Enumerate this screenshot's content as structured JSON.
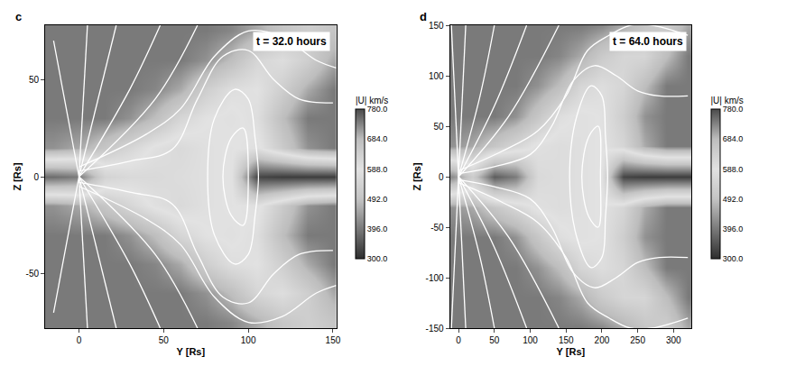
{
  "chart_data": [
    {
      "type": "heatmap",
      "panel_label": "c",
      "title": "t = 32.0 hours",
      "xlabel": "Y [Rs]",
      "ylabel": "Z [Rs]",
      "xlim": [
        -20,
        152
      ],
      "ylim": [
        -78,
        78
      ],
      "xticks": [
        0,
        50,
        100,
        150
      ],
      "yticks": [
        -50,
        0,
        50
      ],
      "grid": false,
      "x": [
        -15,
        0,
        15,
        30,
        45,
        60,
        75,
        90,
        105,
        120,
        135,
        150
      ],
      "y": [
        -75,
        -60,
        -45,
        -30,
        -15,
        0,
        15,
        30,
        45,
        60,
        75
      ],
      "cells": [
        [
          740,
          740,
          740,
          740,
          740,
          740,
          740,
          730,
          700,
          660,
          640,
          660
        ],
        [
          740,
          740,
          740,
          740,
          740,
          740,
          720,
          680,
          620,
          600,
          640,
          700
        ],
        [
          740,
          740,
          740,
          740,
          730,
          700,
          640,
          600,
          590,
          640,
          700,
          740
        ],
        [
          740,
          740,
          740,
          720,
          680,
          620,
          590,
          580,
          600,
          680,
          740,
          740
        ],
        [
          720,
          700,
          660,
          620,
          580,
          560,
          580,
          590,
          580,
          650,
          720,
          740
        ],
        [
          380,
          400,
          540,
          560,
          560,
          570,
          580,
          590,
          330,
          320,
          320,
          320
        ],
        [
          720,
          700,
          660,
          620,
          580,
          560,
          580,
          590,
          580,
          650,
          720,
          740
        ],
        [
          740,
          740,
          740,
          720,
          680,
          620,
          590,
          580,
          600,
          680,
          740,
          740
        ],
        [
          740,
          740,
          740,
          740,
          730,
          700,
          640,
          600,
          590,
          640,
          700,
          740
        ],
        [
          740,
          740,
          740,
          740,
          740,
          740,
          720,
          680,
          620,
          600,
          640,
          700
        ],
        [
          740,
          740,
          740,
          740,
          740,
          740,
          740,
          730,
          700,
          660,
          640,
          660
        ]
      ],
      "colorbar": {
        "title": "|U| km/s",
        "range": [
          300,
          780
        ],
        "ticks": [
          {
            "value": 780,
            "label": "780.0"
          },
          {
            "value": 684,
            "label": "684.0"
          },
          {
            "value": 588,
            "label": "588.0"
          },
          {
            "value": 492,
            "label": "492.0"
          },
          {
            "value": 396,
            "label": "396.0"
          },
          {
            "value": 300,
            "label": "300.0"
          }
        ]
      },
      "streamlines": [
        {
          "x": [
            0,
            -15
          ],
          "y": [
            0,
            70
          ]
        },
        {
          "x": [
            0,
            5
          ],
          "y": [
            0,
            78
          ]
        },
        {
          "x": [
            0,
            22
          ],
          "y": [
            0,
            78
          ]
        },
        {
          "x": [
            0,
            30,
            48
          ],
          "y": [
            0,
            45,
            78
          ]
        },
        {
          "x": [
            0,
            45,
            70
          ],
          "y": [
            0,
            40,
            78
          ]
        },
        {
          "x": [
            0,
            -15
          ],
          "y": [
            0,
            -70
          ]
        },
        {
          "x": [
            0,
            5
          ],
          "y": [
            0,
            -78
          ]
        },
        {
          "x": [
            0,
            22
          ],
          "y": [
            0,
            -78
          ]
        },
        {
          "x": [
            0,
            30,
            48
          ],
          "y": [
            0,
            -45,
            -78
          ]
        },
        {
          "x": [
            0,
            45,
            70
          ],
          "y": [
            0,
            -40,
            -78
          ]
        },
        {
          "x": [
            0,
            30,
            55,
            70,
            85,
            100,
            115,
            130,
            150
          ],
          "y": [
            3,
            8,
            14,
            40,
            62,
            65,
            50,
            40,
            38
          ]
        },
        {
          "x": [
            0,
            40,
            60,
            80,
            100,
            120,
            140,
            152
          ],
          "y": [
            5,
            22,
            35,
            62,
            75,
            72,
            60,
            56
          ]
        },
        {
          "x": [
            0,
            30,
            55,
            70,
            85,
            100,
            115,
            130,
            150
          ],
          "y": [
            -3,
            -8,
            -14,
            -40,
            -62,
            -65,
            -50,
            -40,
            -38
          ]
        },
        {
          "x": [
            0,
            40,
            60,
            80,
            100,
            120,
            140,
            152
          ],
          "y": [
            -5,
            -22,
            -35,
            -62,
            -75,
            -72,
            -60,
            -56
          ]
        },
        {
          "x": [
            100,
            92,
            80,
            76,
            80,
            92,
            100,
            104,
            106,
            104,
            100
          ],
          "y": [
            40,
            45,
            30,
            0,
            -30,
            -45,
            -40,
            -20,
            0,
            20,
            40
          ]
        },
        {
          "x": [
            97,
            90,
            85,
            90,
            97,
            100,
            97
          ],
          "y": [
            25,
            20,
            0,
            -20,
            -25,
            0,
            25
          ]
        }
      ]
    },
    {
      "type": "heatmap",
      "panel_label": "d",
      "title": "t = 64.0 hours",
      "xlabel": "Y [Rs]",
      "ylabel": "Z [Rs]",
      "xlim": [
        -12,
        325
      ],
      "ylim": [
        -150,
        150
      ],
      "xticks": [
        0,
        50,
        100,
        150,
        200,
        250,
        300
      ],
      "yticks": [
        -150,
        -100,
        -50,
        0,
        50,
        100,
        150
      ],
      "grid": false,
      "x": [
        -10,
        20,
        50,
        80,
        110,
        140,
        170,
        200,
        230,
        260,
        290,
        320
      ],
      "y": [
        -150,
        -120,
        -90,
        -60,
        -30,
        0,
        30,
        60,
        90,
        120,
        150
      ],
      "cells": [
        [
          740,
          740,
          740,
          740,
          740,
          740,
          740,
          730,
          700,
          660,
          640,
          700
        ],
        [
          740,
          740,
          740,
          740,
          740,
          730,
          700,
          650,
          620,
          620,
          680,
          740
        ],
        [
          740,
          740,
          740,
          740,
          720,
          680,
          620,
          600,
          620,
          680,
          740,
          740
        ],
        [
          740,
          740,
          740,
          720,
          660,
          600,
          580,
          590,
          640,
          720,
          740,
          740
        ],
        [
          720,
          700,
          660,
          620,
          580,
          570,
          580,
          590,
          620,
          700,
          740,
          740
        ],
        [
          420,
          520,
          360,
          400,
          560,
          570,
          580,
          590,
          330,
          320,
          320,
          320
        ],
        [
          720,
          700,
          660,
          620,
          580,
          570,
          580,
          590,
          620,
          700,
          740,
          740
        ],
        [
          740,
          740,
          740,
          720,
          660,
          600,
          580,
          590,
          640,
          720,
          740,
          740
        ],
        [
          740,
          740,
          740,
          740,
          720,
          680,
          620,
          600,
          620,
          680,
          740,
          740
        ],
        [
          740,
          740,
          740,
          740,
          740,
          730,
          700,
          650,
          620,
          620,
          680,
          740
        ],
        [
          740,
          740,
          740,
          740,
          740,
          740,
          740,
          730,
          700,
          660,
          640,
          700
        ]
      ],
      "colorbar": {
        "title": "|U| km/s",
        "range": [
          300,
          780
        ],
        "ticks": [
          {
            "value": 780,
            "label": "780.0"
          },
          {
            "value": 684,
            "label": "684.0"
          },
          {
            "value": 588,
            "label": "588.0"
          },
          {
            "value": 492,
            "label": "492.0"
          },
          {
            "value": 396,
            "label": "396.0"
          },
          {
            "value": 300,
            "label": "300.0"
          }
        ]
      },
      "streamlines": [
        {
          "x": [
            0,
            -10
          ],
          "y": [
            0,
            150
          ]
        },
        {
          "x": [
            0,
            10
          ],
          "y": [
            0,
            150
          ]
        },
        {
          "x": [
            0,
            30,
            50
          ],
          "y": [
            0,
            80,
            150
          ]
        },
        {
          "x": [
            0,
            50,
            95
          ],
          "y": [
            0,
            70,
            150
          ]
        },
        {
          "x": [
            0,
            70,
            140
          ],
          "y": [
            0,
            60,
            150
          ]
        },
        {
          "x": [
            0,
            -10
          ],
          "y": [
            0,
            -150
          ]
        },
        {
          "x": [
            0,
            10
          ],
          "y": [
            0,
            -150
          ]
        },
        {
          "x": [
            0,
            30,
            50
          ],
          "y": [
            0,
            -80,
            -150
          ]
        },
        {
          "x": [
            0,
            50,
            95
          ],
          "y": [
            0,
            -70,
            -150
          ]
        },
        {
          "x": [
            0,
            70,
            140
          ],
          "y": [
            0,
            -60,
            -150
          ]
        },
        {
          "x": [
            0,
            50,
            100,
            130,
            160,
            190,
            220,
            250,
            280,
            320
          ],
          "y": [
            3,
            10,
            22,
            50,
            95,
            110,
            100,
            85,
            80,
            80
          ]
        },
        {
          "x": [
            0,
            60,
            110,
            150,
            180,
            210,
            240,
            270,
            320
          ],
          "y": [
            6,
            25,
            45,
            80,
            125,
            140,
            150,
            150,
            140
          ]
        },
        {
          "x": [
            0,
            50,
            100,
            130,
            160,
            190,
            220,
            250,
            280,
            320
          ],
          "y": [
            -3,
            -10,
            -22,
            -50,
            -95,
            -110,
            -100,
            -85,
            -80,
            -80
          ]
        },
        {
          "x": [
            0,
            60,
            110,
            150,
            180,
            210,
            240,
            270,
            320
          ],
          "y": [
            -6,
            -25,
            -45,
            -80,
            -125,
            -140,
            -150,
            -150,
            -140
          ]
        },
        {
          "x": [
            200,
            185,
            165,
            155,
            165,
            185,
            200,
            205,
            208,
            205,
            200
          ],
          "y": [
            80,
            90,
            60,
            0,
            -60,
            -90,
            -80,
            -40,
            0,
            40,
            80
          ]
        },
        {
          "x": [
            195,
            182,
            172,
            182,
            195,
            198,
            195
          ],
          "y": [
            50,
            40,
            0,
            -40,
            -50,
            0,
            50
          ]
        }
      ]
    }
  ]
}
